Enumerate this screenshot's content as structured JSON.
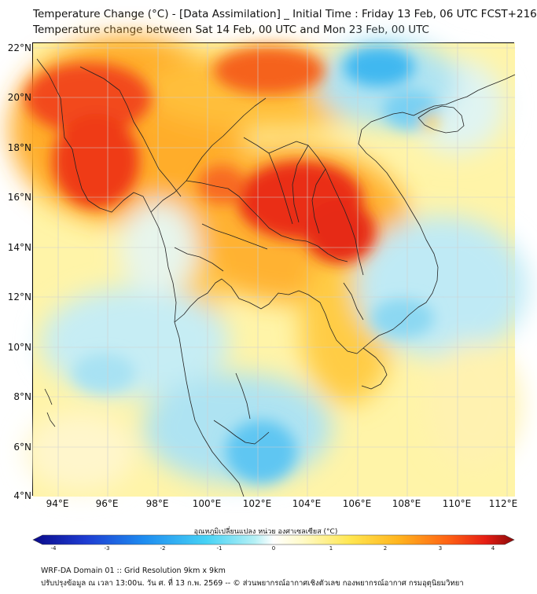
{
  "title": {
    "line1": "Temperature Change (°C) - [Data Assimilation] _ Initial Time : Friday 13 Feb, 06 UTC FCST+216",
    "line2": "Temperature change between Sat 14 Feb, 00 UTC and Mon 23 Feb, 00 UTC"
  },
  "axes": {
    "lat_labels": [
      "22°N",
      "20°N",
      "18°N",
      "16°N",
      "14°N",
      "12°N",
      "10°N",
      "8°N",
      "6°N",
      "4°N"
    ],
    "lon_labels": [
      "94°E",
      "96°E",
      "98°E",
      "100°E",
      "102°E",
      "104°E",
      "106°E",
      "108°E",
      "110°E",
      "112°E"
    ],
    "lat_range": [
      4,
      22
    ],
    "lon_range": [
      93,
      112.3
    ]
  },
  "colorbar": {
    "title": "อุณหภูมิเปลี่ยนแปลง หน่วย องศาเซลเซียส (°C)",
    "ticks": [
      "-4",
      "-3",
      "-2",
      "-1",
      "0",
      "1",
      "2",
      "3",
      "4"
    ],
    "range": [
      -4,
      4
    ],
    "colors": [
      "#0a0a8a",
      "#1e3cd2",
      "#1e8cf0",
      "#46d2f5",
      "#b4f0f5",
      "#ffffff",
      "#fffac8",
      "#ffe650",
      "#ffb41e",
      "#ff6414",
      "#e61e14",
      "#8c0a0a"
    ]
  },
  "footer": {
    "line1": "WRF-DA Domain 01 :: Grid Resolution 9km x 9km",
    "line2": "ปรับปรุงข้อมูล ณ เวลา 13:00น. วัน ศ. ที่ 13 ก.พ. 2569 -- © ส่วนพยากรณ์อากาศเชิงตัวเลข กองพยากรณ์อากาศ กรมอุตุนิยมวิทยา"
  }
}
